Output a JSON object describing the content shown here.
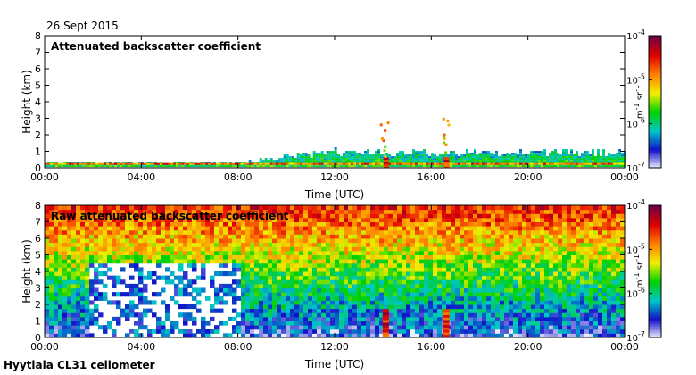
{
  "date_label": "26 Sept 2015",
  "footer": "Hyytiala CL31 ceilometer",
  "colorbar": {
    "unit_base": "m",
    "unit_exp1": "-1",
    "unit_mid": "sr",
    "unit_exp2": "-1",
    "ticks": [
      {
        "base": "10",
        "exp": "-4",
        "value": 0.0001
      },
      {
        "base": "10",
        "exp": "-5",
        "value": 1e-05
      },
      {
        "base": "10",
        "exp": "-6",
        "value": 1e-06
      },
      {
        "base": "10",
        "exp": "-7",
        "value": 1e-07
      }
    ],
    "range": [
      1e-07,
      0.0001
    ],
    "scale": "log",
    "colors": [
      "#f4f4ff",
      "#1010c8",
      "#00c8c8",
      "#00d000",
      "#f0f000",
      "#ff8000",
      "#e00000",
      "#700040"
    ]
  },
  "chart_data": [
    {
      "type": "heatmap",
      "title": "Attenuated backscatter coefficient",
      "xlabel": "Time (UTC)",
      "ylabel": "Height (km)",
      "x_range": [
        0,
        24
      ],
      "y_range": [
        0,
        8
      ],
      "xticks": [
        "00:00",
        "04:00",
        "08:00",
        "12:00",
        "16:00",
        "20:00",
        "00:00"
      ],
      "yticks": [
        "0",
        "1",
        "2",
        "3",
        "4",
        "5",
        "6",
        "7",
        "8"
      ],
      "features": [
        {
          "description": "shallow boundary-layer aerosol",
          "time_start": 0,
          "time_end": 8,
          "top_km": 0.3
        },
        {
          "description": "growing boundary layer",
          "time_start": 8,
          "time_end": 12,
          "top_km": 1.0
        },
        {
          "description": "boundary-layer aerosol",
          "time_start": 12,
          "time_end": 24,
          "top_km": 0.9
        },
        {
          "description": "rain shaft",
          "time": 14.1,
          "top_km": 2.8
        },
        {
          "description": "rain shaft",
          "time": 16.6,
          "top_km": 3.0
        }
      ]
    },
    {
      "type": "heatmap",
      "title": "Raw attenuated backscatter coefficient",
      "xlabel": "Time (UTC)",
      "ylabel": "Height (km)",
      "x_range": [
        0,
        24
      ],
      "y_range": [
        0,
        8
      ],
      "xticks": [
        "00:00",
        "04:00",
        "08:00",
        "12:00",
        "16:00",
        "20:00",
        "00:00"
      ],
      "yticks": [
        "0",
        "1",
        "2",
        "3",
        "4",
        "5",
        "6",
        "7",
        "8"
      ],
      "features": [
        {
          "description": "noise-dominated field increasing with height",
          "time_start": 0,
          "time_end": 24
        },
        {
          "description": "gaps with no signal",
          "time_start": 1.8,
          "time_end": 8.1,
          "top_km": 4.5
        },
        {
          "description": "rain shaft",
          "time": 14.1,
          "top_km": 1.5
        },
        {
          "description": "rain shaft",
          "time": 16.6,
          "top_km": 1.5
        }
      ]
    }
  ]
}
